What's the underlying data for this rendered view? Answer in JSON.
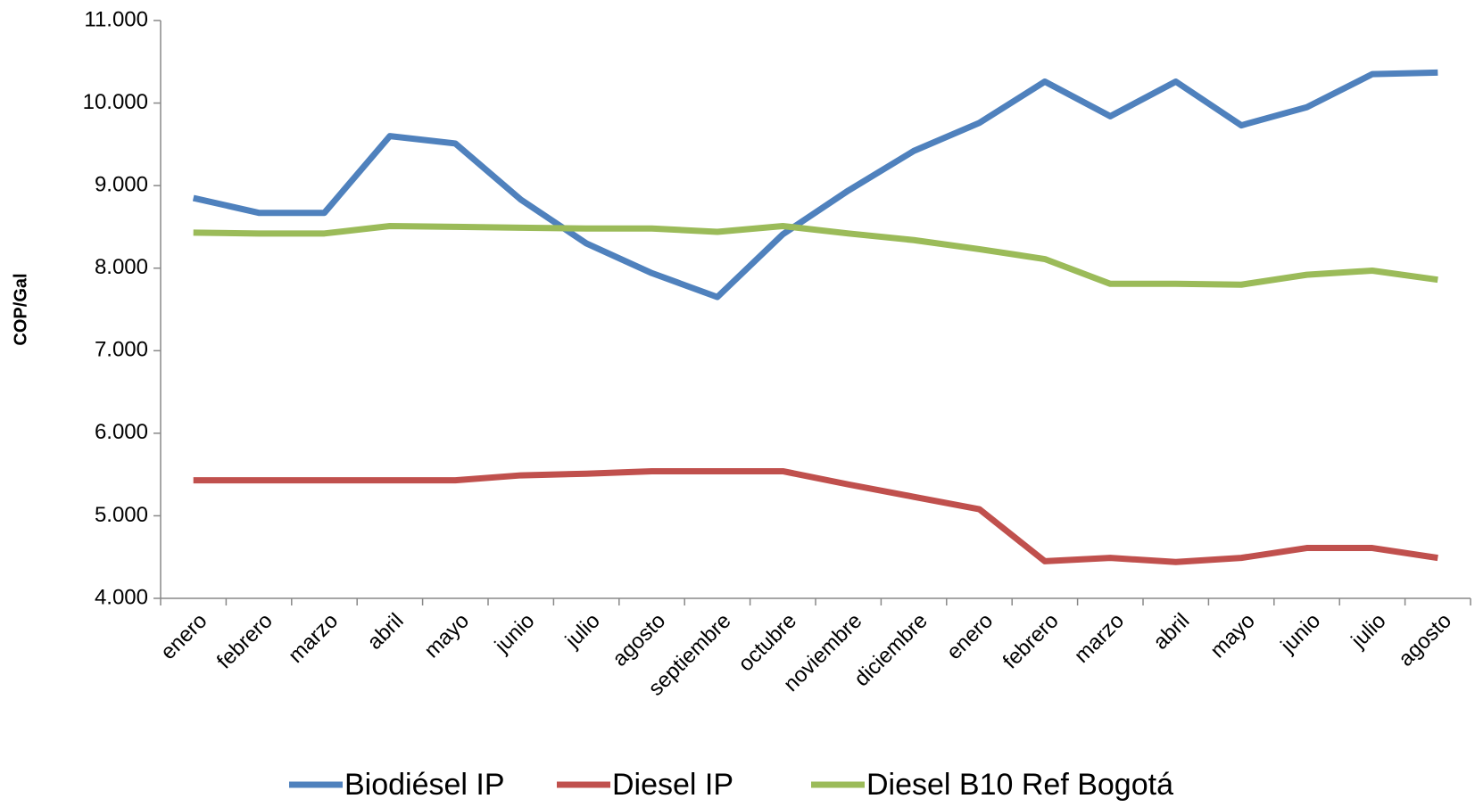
{
  "chart_data": {
    "type": "line",
    "y_label": "COP/Gal",
    "categories": [
      "enero",
      "febrero",
      "marzo",
      "abril",
      "mayo",
      "junio",
      "julio",
      "agosto",
      "septiembre",
      "octubre",
      "noviembre",
      "diciembre",
      "enero",
      "febrero",
      "marzo",
      "abril",
      "mayo",
      "junio",
      "julio",
      "agosto"
    ],
    "series": [
      {
        "name": "Biodiésel IP",
        "color": "#4f81bd",
        "values": [
          8850,
          8670,
          8670,
          9600,
          9510,
          8830,
          8300,
          7940,
          7650,
          8410,
          8940,
          9420,
          9760,
          10260,
          9840,
          10260,
          9730,
          9950,
          10350,
          10370
        ]
      },
      {
        "name": "Diesel IP",
        "color": "#c0504d",
        "values": [
          5430,
          5430,
          5430,
          5430,
          5430,
          5490,
          5510,
          5540,
          5540,
          5540,
          5380,
          5230,
          5080,
          4450,
          4490,
          4440,
          4490,
          4610,
          4610,
          4490
        ]
      },
      {
        "name": "Diesel B10 Ref Bogotá",
        "color": "#9bbb59",
        "values": [
          8430,
          8420,
          8420,
          8510,
          8500,
          8490,
          8480,
          8480,
          8440,
          8510,
          8420,
          8340,
          8230,
          8110,
          7810,
          7810,
          7800,
          7920,
          7970,
          7860
        ]
      }
    ],
    "ylim": [
      4000,
      11000
    ],
    "yticks": [
      {
        "value": 4000,
        "label": "4.000"
      },
      {
        "value": 5000,
        "label": "5.000"
      },
      {
        "value": 6000,
        "label": "6.000"
      },
      {
        "value": 7000,
        "label": "7.000"
      },
      {
        "value": 8000,
        "label": "8.000"
      },
      {
        "value": 9000,
        "label": "9.000"
      },
      {
        "value": 10000,
        "label": "10.000"
      },
      {
        "value": 11000,
        "label": "11.000"
      }
    ],
    "legend": "bottom"
  }
}
